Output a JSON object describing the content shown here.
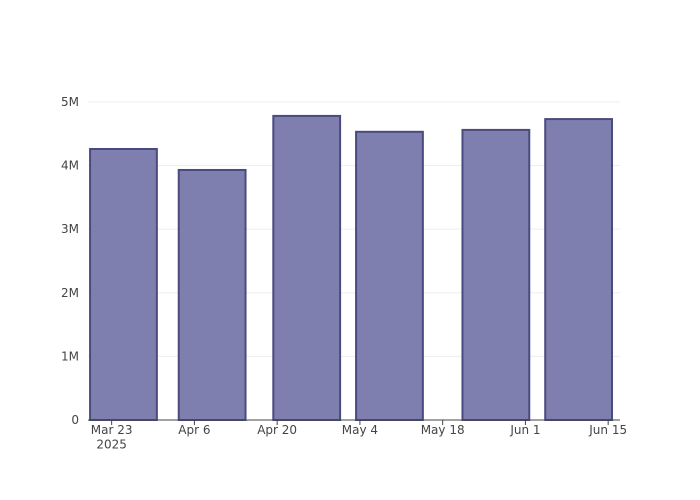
{
  "chart_data": {
    "type": "bar",
    "x": [
      "2025-03-25",
      "2025-04-09",
      "2025-04-25",
      "2025-05-09",
      "2025-05-27",
      "2025-06-10"
    ],
    "values": [
      4260000,
      3930000,
      4780000,
      4530000,
      4560000,
      4730000
    ],
    "color": "#7f7faf",
    "line_color": "#4b4a80",
    "xlim": [
      "2025-03-19",
      "2025-06-17"
    ],
    "xticks": [
      {
        "value": "2025-03-23",
        "label": "Mar 23\n2025"
      },
      {
        "value": "2025-04-06",
        "label": "Apr 6"
      },
      {
        "value": "2025-04-20",
        "label": "Apr 20"
      },
      {
        "value": "2025-05-04",
        "label": "May 4"
      },
      {
        "value": "2025-05-18",
        "label": "May 18"
      },
      {
        "value": "2025-06-01",
        "label": "Jun 1"
      },
      {
        "value": "2025-06-15",
        "label": "Jun 15"
      }
    ],
    "ylim": [
      0,
      5030000
    ],
    "yticks": [
      0,
      {
        "value": 1000000,
        "label": "1M"
      },
      {
        "value": 2000000,
        "label": "2M"
      },
      {
        "value": 3000000,
        "label": "3M"
      },
      {
        "value": 4000000,
        "label": "4M"
      },
      {
        "value": 5000000,
        "label": "5M"
      }
    ],
    "grid": true
  }
}
